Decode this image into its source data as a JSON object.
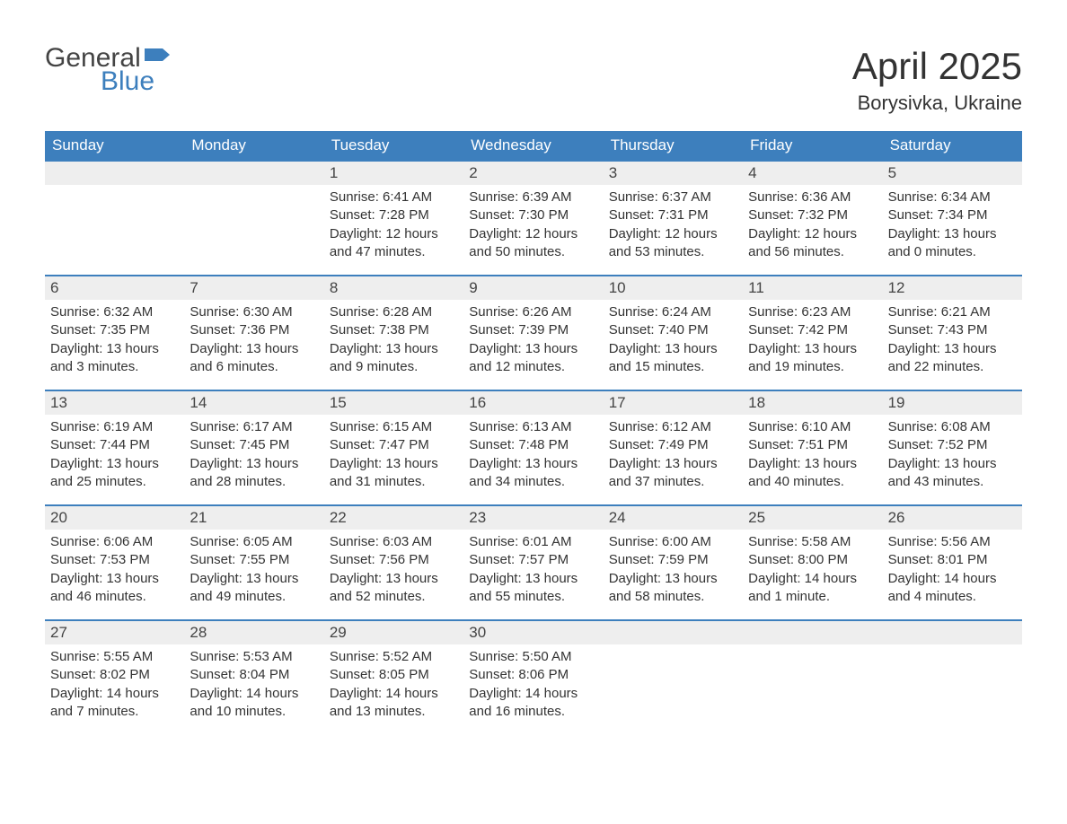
{
  "logo": {
    "word1": "General",
    "word2": "Blue"
  },
  "title": "April 2025",
  "location": "Borysivka, Ukraine",
  "colors": {
    "header_bg": "#3d7fbd",
    "header_fg": "#ffffff",
    "daynum_bg": "#eeeeee",
    "border": "#3d7fbd",
    "text": "#333333",
    "bg": "#ffffff"
  },
  "day_headers": [
    "Sunday",
    "Monday",
    "Tuesday",
    "Wednesday",
    "Thursday",
    "Friday",
    "Saturday"
  ],
  "weeks": [
    [
      {
        "blank": true
      },
      {
        "blank": true
      },
      {
        "day": 1,
        "sunrise": "6:41 AM",
        "sunset": "7:28 PM",
        "daylight": "12 hours and 47 minutes."
      },
      {
        "day": 2,
        "sunrise": "6:39 AM",
        "sunset": "7:30 PM",
        "daylight": "12 hours and 50 minutes."
      },
      {
        "day": 3,
        "sunrise": "6:37 AM",
        "sunset": "7:31 PM",
        "daylight": "12 hours and 53 minutes."
      },
      {
        "day": 4,
        "sunrise": "6:36 AM",
        "sunset": "7:32 PM",
        "daylight": "12 hours and 56 minutes."
      },
      {
        "day": 5,
        "sunrise": "6:34 AM",
        "sunset": "7:34 PM",
        "daylight": "13 hours and 0 minutes."
      }
    ],
    [
      {
        "day": 6,
        "sunrise": "6:32 AM",
        "sunset": "7:35 PM",
        "daylight": "13 hours and 3 minutes."
      },
      {
        "day": 7,
        "sunrise": "6:30 AM",
        "sunset": "7:36 PM",
        "daylight": "13 hours and 6 minutes."
      },
      {
        "day": 8,
        "sunrise": "6:28 AM",
        "sunset": "7:38 PM",
        "daylight": "13 hours and 9 minutes."
      },
      {
        "day": 9,
        "sunrise": "6:26 AM",
        "sunset": "7:39 PM",
        "daylight": "13 hours and 12 minutes."
      },
      {
        "day": 10,
        "sunrise": "6:24 AM",
        "sunset": "7:40 PM",
        "daylight": "13 hours and 15 minutes."
      },
      {
        "day": 11,
        "sunrise": "6:23 AM",
        "sunset": "7:42 PM",
        "daylight": "13 hours and 19 minutes."
      },
      {
        "day": 12,
        "sunrise": "6:21 AM",
        "sunset": "7:43 PM",
        "daylight": "13 hours and 22 minutes."
      }
    ],
    [
      {
        "day": 13,
        "sunrise": "6:19 AM",
        "sunset": "7:44 PM",
        "daylight": "13 hours and 25 minutes."
      },
      {
        "day": 14,
        "sunrise": "6:17 AM",
        "sunset": "7:45 PM",
        "daylight": "13 hours and 28 minutes."
      },
      {
        "day": 15,
        "sunrise": "6:15 AM",
        "sunset": "7:47 PM",
        "daylight": "13 hours and 31 minutes."
      },
      {
        "day": 16,
        "sunrise": "6:13 AM",
        "sunset": "7:48 PM",
        "daylight": "13 hours and 34 minutes."
      },
      {
        "day": 17,
        "sunrise": "6:12 AM",
        "sunset": "7:49 PM",
        "daylight": "13 hours and 37 minutes."
      },
      {
        "day": 18,
        "sunrise": "6:10 AM",
        "sunset": "7:51 PM",
        "daylight": "13 hours and 40 minutes."
      },
      {
        "day": 19,
        "sunrise": "6:08 AM",
        "sunset": "7:52 PM",
        "daylight": "13 hours and 43 minutes."
      }
    ],
    [
      {
        "day": 20,
        "sunrise": "6:06 AM",
        "sunset": "7:53 PM",
        "daylight": "13 hours and 46 minutes."
      },
      {
        "day": 21,
        "sunrise": "6:05 AM",
        "sunset": "7:55 PM",
        "daylight": "13 hours and 49 minutes."
      },
      {
        "day": 22,
        "sunrise": "6:03 AM",
        "sunset": "7:56 PM",
        "daylight": "13 hours and 52 minutes."
      },
      {
        "day": 23,
        "sunrise": "6:01 AM",
        "sunset": "7:57 PM",
        "daylight": "13 hours and 55 minutes."
      },
      {
        "day": 24,
        "sunrise": "6:00 AM",
        "sunset": "7:59 PM",
        "daylight": "13 hours and 58 minutes."
      },
      {
        "day": 25,
        "sunrise": "5:58 AM",
        "sunset": "8:00 PM",
        "daylight": "14 hours and 1 minute."
      },
      {
        "day": 26,
        "sunrise": "5:56 AM",
        "sunset": "8:01 PM",
        "daylight": "14 hours and 4 minutes."
      }
    ],
    [
      {
        "day": 27,
        "sunrise": "5:55 AM",
        "sunset": "8:02 PM",
        "daylight": "14 hours and 7 minutes."
      },
      {
        "day": 28,
        "sunrise": "5:53 AM",
        "sunset": "8:04 PM",
        "daylight": "14 hours and 10 minutes."
      },
      {
        "day": 29,
        "sunrise": "5:52 AM",
        "sunset": "8:05 PM",
        "daylight": "14 hours and 13 minutes."
      },
      {
        "day": 30,
        "sunrise": "5:50 AM",
        "sunset": "8:06 PM",
        "daylight": "14 hours and 16 minutes."
      },
      {
        "blank": true
      },
      {
        "blank": true
      },
      {
        "blank": true
      }
    ]
  ],
  "labels": {
    "sunrise": "Sunrise: ",
    "sunset": "Sunset: ",
    "daylight": "Daylight: "
  }
}
